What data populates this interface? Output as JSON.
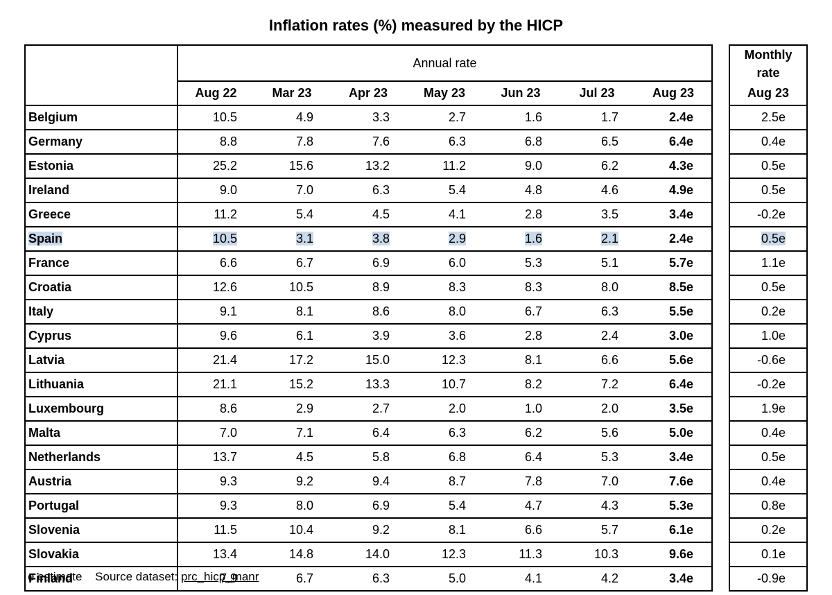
{
  "title": "Inflation rates (%) measured by the HICP",
  "annual_label": "Annual rate",
  "monthly_label_line1": "Monthly",
  "monthly_label_line2": "rate",
  "columns": [
    "Aug 22",
    "Mar 23",
    "Apr 23",
    "May 23",
    "Jun 23",
    "Jul 23",
    "Aug 23"
  ],
  "monthly_column": "Aug 23",
  "highlight_color": "#c9d9ea",
  "rows": [
    {
      "country": "Belgium",
      "values": [
        "10.5",
        "4.9",
        "3.3",
        "2.7",
        "1.6",
        "1.7",
        "2.4e"
      ],
      "monthly": "2.5e"
    },
    {
      "country": "Germany",
      "values": [
        "8.8",
        "7.8",
        "7.6",
        "6.3",
        "6.8",
        "6.5",
        "6.4e"
      ],
      "monthly": "0.4e"
    },
    {
      "country": "Estonia",
      "values": [
        "25.2",
        "15.6",
        "13.2",
        "11.2",
        "9.0",
        "6.2",
        "4.3e"
      ],
      "monthly": "0.5e"
    },
    {
      "country": "Ireland",
      "values": [
        "9.0",
        "7.0",
        "6.3",
        "5.4",
        "4.8",
        "4.6",
        "4.9e"
      ],
      "monthly": "0.5e"
    },
    {
      "country": "Greece",
      "values": [
        "11.2",
        "5.4",
        "4.5",
        "4.1",
        "2.8",
        "3.5",
        "3.4e"
      ],
      "monthly": "-0.2e"
    },
    {
      "country": "Spain",
      "values": [
        "10.5",
        "3.1",
        "3.8",
        "2.9",
        "1.6",
        "2.1",
        "2.4e"
      ],
      "monthly": "0.5e"
    },
    {
      "country": "France",
      "values": [
        "6.6",
        "6.7",
        "6.9",
        "6.0",
        "5.3",
        "5.1",
        "5.7e"
      ],
      "monthly": "1.1e"
    },
    {
      "country": "Croatia",
      "values": [
        "12.6",
        "10.5",
        "8.9",
        "8.3",
        "8.3",
        "8.0",
        "8.5e"
      ],
      "monthly": "0.5e"
    },
    {
      "country": "Italy",
      "values": [
        "9.1",
        "8.1",
        "8.6",
        "8.0",
        "6.7",
        "6.3",
        "5.5e"
      ],
      "monthly": "0.2e"
    },
    {
      "country": "Cyprus",
      "values": [
        "9.6",
        "6.1",
        "3.9",
        "3.6",
        "2.8",
        "2.4",
        "3.0e"
      ],
      "monthly": "1.0e"
    },
    {
      "country": "Latvia",
      "values": [
        "21.4",
        "17.2",
        "15.0",
        "12.3",
        "8.1",
        "6.6",
        "5.6e"
      ],
      "monthly": "-0.6e"
    },
    {
      "country": "Lithuania",
      "values": [
        "21.1",
        "15.2",
        "13.3",
        "10.7",
        "8.2",
        "7.2",
        "6.4e"
      ],
      "monthly": "-0.2e"
    },
    {
      "country": "Luxembourg",
      "values": [
        "8.6",
        "2.9",
        "2.7",
        "2.0",
        "1.0",
        "2.0",
        "3.5e"
      ],
      "monthly": "1.9e"
    },
    {
      "country": "Malta",
      "values": [
        "7.0",
        "7.1",
        "6.4",
        "6.3",
        "6.2",
        "5.6",
        "5.0e"
      ],
      "monthly": "0.4e"
    },
    {
      "country": "Netherlands",
      "values": [
        "13.7",
        "4.5",
        "5.8",
        "6.8",
        "6.4",
        "5.3",
        "3.4e"
      ],
      "monthly": "0.5e"
    },
    {
      "country": "Austria",
      "values": [
        "9.3",
        "9.2",
        "9.4",
        "8.7",
        "7.8",
        "7.0",
        "7.6e"
      ],
      "monthly": "0.4e"
    },
    {
      "country": "Portugal",
      "values": [
        "9.3",
        "8.0",
        "6.9",
        "5.4",
        "4.7",
        "4.3",
        "5.3e"
      ],
      "monthly": "0.8e"
    },
    {
      "country": "Slovenia",
      "values": [
        "11.5",
        "10.4",
        "9.2",
        "8.1",
        "6.6",
        "5.7",
        "6.1e"
      ],
      "monthly": "0.2e"
    },
    {
      "country": "Slovakia",
      "values": [
        "13.4",
        "14.8",
        "14.0",
        "12.3",
        "11.3",
        "10.3",
        "9.6e"
      ],
      "monthly": "0.1e"
    },
    {
      "country": "Finland",
      "values": [
        "7.9",
        "6.7",
        "6.3",
        "5.0",
        "4.1",
        "4.2",
        "3.4e"
      ],
      "monthly": "-0.9e"
    }
  ],
  "highlighted_country": "Spain",
  "footer": {
    "estimate_note": "e estimate",
    "source_label": "Source dataset:",
    "dataset": "prc_hicp_manr"
  }
}
